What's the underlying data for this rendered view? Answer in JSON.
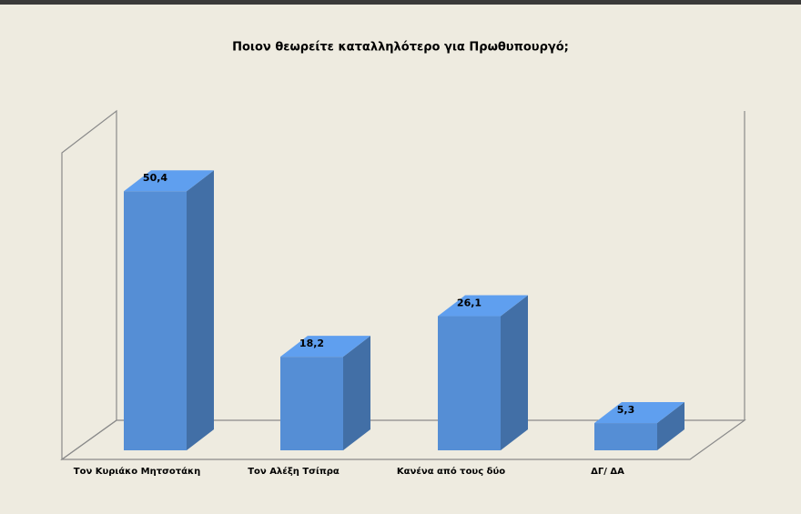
{
  "chart_data": {
    "type": "bar3d",
    "title": "Ποιον θεωρείτε καταλληλότερο για Πρωθυπουργό;",
    "categories": [
      "Τον Κυριάκο Μητσοτάκη",
      "Τον Αλέξη Τσίπρα",
      "Κανένα από τους δύο",
      "ΔΓ/ ΔΑ"
    ],
    "values": [
      50.4,
      18.2,
      26.1,
      5.3
    ],
    "value_labels": [
      "50,4",
      "18,2",
      "26,1",
      "5,3"
    ],
    "color": "#558ed5"
  }
}
